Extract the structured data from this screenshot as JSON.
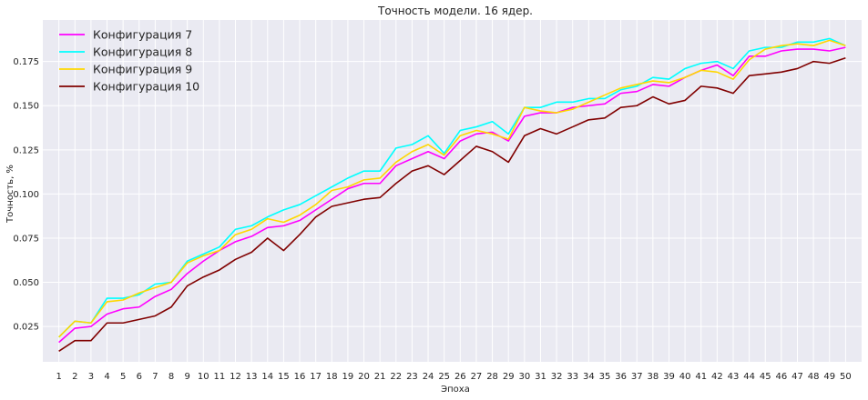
{
  "chart_data": {
    "type": "line",
    "title": "Точность модели. 16 ядер.",
    "xlabel": "Эпоха",
    "ylabel": "Точность, %",
    "x": [
      1,
      2,
      3,
      4,
      5,
      6,
      7,
      8,
      9,
      10,
      11,
      12,
      13,
      14,
      15,
      16,
      17,
      18,
      19,
      20,
      21,
      22,
      23,
      24,
      25,
      26,
      27,
      28,
      29,
      30,
      31,
      32,
      33,
      34,
      35,
      36,
      37,
      38,
      39,
      40,
      41,
      42,
      43,
      44,
      45,
      46,
      47,
      48,
      49,
      50
    ],
    "xlim": [
      0,
      51
    ],
    "ylim": [
      0.005,
      0.1985
    ],
    "yticks": [
      "0.025",
      "0.050",
      "0.075",
      "0.100",
      "0.125",
      "0.150",
      "0.175"
    ],
    "grid": true,
    "legend_position": "top-left",
    "series": [
      {
        "name": "Конфигурация 7",
        "color": "#ff00ff",
        "values": [
          0.016,
          0.024,
          0.025,
          0.032,
          0.035,
          0.036,
          0.042,
          0.046,
          0.055,
          0.062,
          0.068,
          0.073,
          0.076,
          0.081,
          0.082,
          0.085,
          0.091,
          0.097,
          0.103,
          0.106,
          0.106,
          0.116,
          0.12,
          0.124,
          0.12,
          0.13,
          0.134,
          0.135,
          0.13,
          0.144,
          0.146,
          0.146,
          0.149,
          0.15,
          0.151,
          0.157,
          0.158,
          0.162,
          0.161,
          0.166,
          0.17,
          0.173,
          0.167,
          0.178,
          0.178,
          0.181,
          0.182,
          0.182,
          0.181,
          0.183
        ]
      },
      {
        "name": "Конфигурация 8",
        "color": "#00ffff",
        "values": [
          0.019,
          0.028,
          0.027,
          0.041,
          0.041,
          0.043,
          0.049,
          0.05,
          0.062,
          0.066,
          0.07,
          0.08,
          0.082,
          0.087,
          0.091,
          0.094,
          0.099,
          0.104,
          0.109,
          0.113,
          0.113,
          0.126,
          0.128,
          0.133,
          0.123,
          0.136,
          0.138,
          0.141,
          0.134,
          0.149,
          0.149,
          0.152,
          0.152,
          0.154,
          0.154,
          0.159,
          0.161,
          0.166,
          0.165,
          0.171,
          0.174,
          0.175,
          0.171,
          0.181,
          0.183,
          0.183,
          0.186,
          0.186,
          0.188,
          0.184
        ]
      },
      {
        "name": "Конфигурация 9",
        "color": "#ffd700",
        "values": [
          0.019,
          0.028,
          0.027,
          0.039,
          0.04,
          0.044,
          0.047,
          0.05,
          0.061,
          0.065,
          0.068,
          0.077,
          0.08,
          0.086,
          0.084,
          0.088,
          0.094,
          0.102,
          0.104,
          0.108,
          0.109,
          0.118,
          0.124,
          0.128,
          0.122,
          0.133,
          0.136,
          0.134,
          0.131,
          0.149,
          0.147,
          0.146,
          0.148,
          0.152,
          0.156,
          0.16,
          0.162,
          0.164,
          0.163,
          0.166,
          0.17,
          0.169,
          0.165,
          0.176,
          0.182,
          0.184,
          0.185,
          0.184,
          0.187,
          0.184
        ]
      },
      {
        "name": "Конфигурация 10",
        "color": "#800000",
        "values": [
          0.011,
          0.017,
          0.017,
          0.027,
          0.027,
          0.029,
          0.031,
          0.036,
          0.048,
          0.053,
          0.057,
          0.063,
          0.067,
          0.075,
          0.068,
          0.077,
          0.087,
          0.093,
          0.095,
          0.097,
          0.098,
          0.106,
          0.113,
          0.116,
          0.111,
          0.119,
          0.127,
          0.124,
          0.118,
          0.133,
          0.137,
          0.134,
          0.138,
          0.142,
          0.143,
          0.149,
          0.15,
          0.155,
          0.151,
          0.153,
          0.161,
          0.16,
          0.157,
          0.167,
          0.168,
          0.169,
          0.171,
          0.175,
          0.174,
          0.177
        ]
      }
    ]
  }
}
